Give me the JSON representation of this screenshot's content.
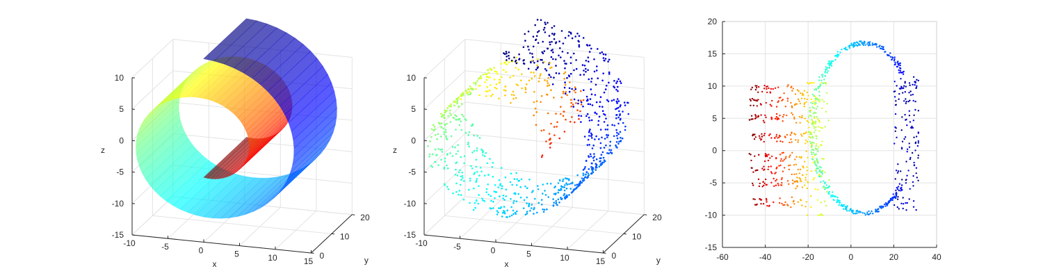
{
  "colors": {
    "colormap": "jet",
    "axis": "#262626",
    "grid": "#e3e3e3"
  },
  "chart_data": [
    {
      "type": "surface",
      "description_shape": "swiss-roll",
      "xlabel": "x",
      "ylabel": "y",
      "zlabel": "z",
      "xlim": [
        -10,
        15
      ],
      "ylim": [
        0,
        20
      ],
      "zlim": [
        -15,
        10
      ],
      "xticks": [
        "-10",
        "-5",
        "0",
        "5",
        "10",
        "15"
      ],
      "yticks": [
        "0",
        "10",
        "20"
      ],
      "zticks": [
        "-15",
        "-10",
        "-5",
        "0",
        "5",
        "10"
      ],
      "t_range": [
        4.71,
        14.14
      ],
      "height_range": [
        0,
        21
      ],
      "grid": true,
      "surface_alpha": 0.65
    },
    {
      "type": "scatter",
      "description_shape": "swiss-roll",
      "xlabel": "x",
      "ylabel": "y",
      "zlabel": "z",
      "xlim": [
        -10,
        15
      ],
      "ylim": [
        0,
        20
      ],
      "zlim": [
        -15,
        10
      ],
      "xticks": [
        "-10",
        "-5",
        "0",
        "5",
        "10",
        "15"
      ],
      "yticks": [
        "0",
        "10",
        "20"
      ],
      "zticks": [
        "-15",
        "-10",
        "-5",
        "0",
        "5",
        "10"
      ],
      "t_range": [
        4.71,
        14.14
      ],
      "height_range": [
        0,
        21
      ],
      "n_points": 1000,
      "grid": true
    },
    {
      "type": "scatter",
      "xlim": [
        -60,
        40
      ],
      "ylim": [
        -15,
        20
      ],
      "xticks": [
        "-60",
        "-40",
        "-20",
        "0",
        "20",
        "40"
      ],
      "yticks": [
        "-15",
        "-10",
        "-5",
        "0",
        "5",
        "10",
        "15",
        "20"
      ],
      "n_points": 1000,
      "grid": true
    }
  ]
}
